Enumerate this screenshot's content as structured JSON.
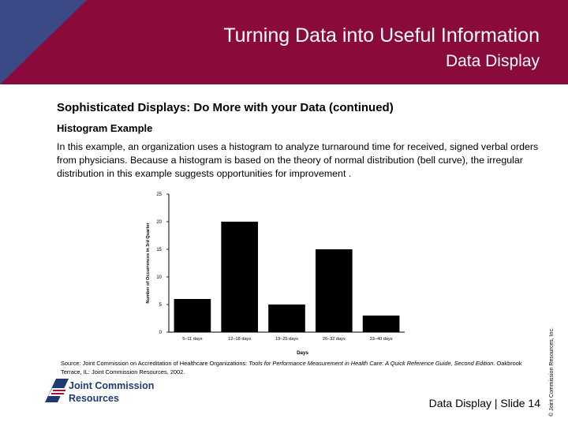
{
  "header": {
    "title": "Turning Data into Useful Information",
    "subtitle": "Data Display",
    "banner_color": "#8b0a3c",
    "triangle_color": "#3b4a86"
  },
  "content": {
    "heading": "Sophisticated Displays: Do More with your Data (continued)",
    "subheading": "Histogram Example",
    "body": "In this example, an organization uses a histogram to analyze turnaround time for received, signed verbal orders from physicians. Because a histogram is based on the theory of normal distribution (bell curve), the irregular distribution in this example suggests opportunities for improvement ."
  },
  "chart_data": {
    "type": "bar",
    "categories": [
      "5–11 days",
      "12–18 days",
      "19–25 days",
      "26–32 days",
      "33–40 days"
    ],
    "values": [
      6,
      20,
      5,
      15,
      3
    ],
    "xlabel": "Days",
    "ylabel": "Number of Occurrences in 3rd Quarter",
    "ylim": [
      0,
      25
    ],
    "yticks": [
      0,
      5,
      10,
      15,
      20,
      25
    ],
    "grid": false,
    "bar_color": "#000000"
  },
  "source": {
    "prefix": "Source: Joint Commission on Accreditation of Healthcare Organizations: ",
    "title": "Tools for Performance Measurement in Health Care: A Quick Reference Guide, Second Edition",
    "suffix": ". Oakbrook Terrace, IL: Joint Commission Resources, 2002."
  },
  "footer": {
    "slide_label": "Data Display | Slide 14",
    "copyright": "© Joint Commission Resources, Inc."
  },
  "logo": {
    "line1": "Joint Commission",
    "line2": "Resources",
    "color": "#1f3a73"
  }
}
